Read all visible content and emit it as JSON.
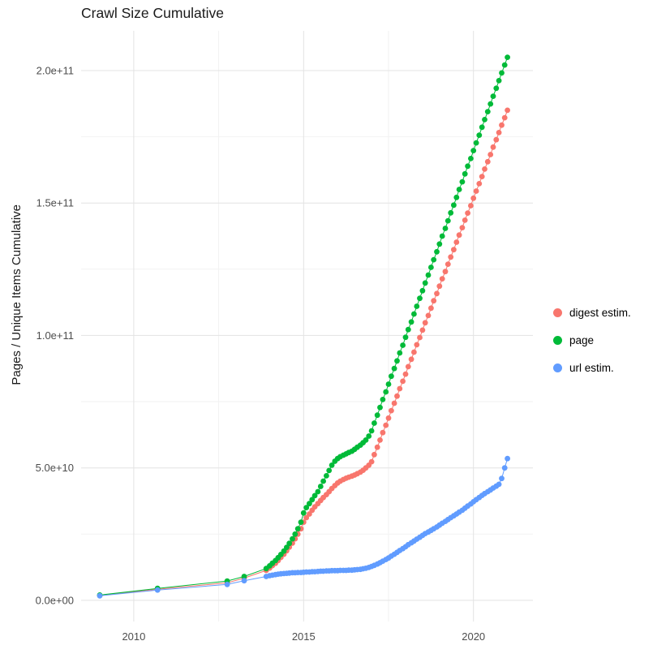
{
  "title": "Crawl Size Cumulative",
  "colors": {
    "background": "#ffffff",
    "grid_major": "#e3e3e3",
    "grid_minor": "#f2f2f2",
    "tick_text": "#4d4d4d",
    "title_text": "#1a1a1a"
  },
  "chart_data": {
    "type": "scatter",
    "title": "Crawl Size Cumulative",
    "xlabel": "",
    "ylabel": "Pages / Unique Items Cumulative",
    "legend_position": "right",
    "grid": true,
    "y_scale_factor": 1000000000,
    "x_domain": [
      2008.45,
      2021.75
    ],
    "y_domain_e9": [
      -8,
      215
    ],
    "x_axis": {
      "ticks": [
        2010,
        2015,
        2020
      ],
      "tick_labels": [
        "2010",
        "2015",
        "2020"
      ],
      "minor_ticks": [
        2012.5,
        2017.5
      ]
    },
    "y_axis": {
      "ticks_e9": [
        0,
        50,
        100,
        150,
        200
      ],
      "tick_labels": [
        "0.0e+00",
        "5.0e+10",
        "1.0e+11",
        "1.5e+11",
        "2.0e+11"
      ],
      "minor_ticks_e9": [
        25,
        75,
        125,
        175
      ]
    },
    "series": [
      {
        "name": "digest estim.",
        "color": "#F8766D",
        "points_e9": [
          [
            2009.0,
            1.8
          ],
          [
            2010.7,
            4.2
          ],
          [
            2012.75,
            6.6
          ],
          [
            2013.25,
            8.4
          ],
          [
            2013.9,
            11.3
          ],
          [
            2014.0,
            12.2
          ],
          [
            2014.08,
            13.1
          ],
          [
            2014.17,
            14.0
          ],
          [
            2014.25,
            15.0
          ],
          [
            2014.33,
            16.2
          ],
          [
            2014.42,
            17.4
          ],
          [
            2014.5,
            18.7
          ],
          [
            2014.58,
            20.1
          ],
          [
            2014.67,
            21.6
          ],
          [
            2014.75,
            23.2
          ],
          [
            2014.83,
            25.0
          ],
          [
            2014.92,
            27.0
          ],
          [
            2015.0,
            29.5
          ],
          [
            2015.08,
            31.2
          ],
          [
            2015.17,
            32.6
          ],
          [
            2015.25,
            34.0
          ],
          [
            2015.33,
            35.3
          ],
          [
            2015.42,
            36.5
          ],
          [
            2015.5,
            37.7
          ],
          [
            2015.58,
            38.8
          ],
          [
            2015.67,
            39.9
          ],
          [
            2015.75,
            41.0
          ],
          [
            2015.83,
            42.2
          ],
          [
            2015.92,
            43.3
          ],
          [
            2016.0,
            44.3
          ],
          [
            2016.08,
            45.0
          ],
          [
            2016.17,
            45.6
          ],
          [
            2016.25,
            46.1
          ],
          [
            2016.33,
            46.5
          ],
          [
            2016.42,
            46.9
          ],
          [
            2016.5,
            47.3
          ],
          [
            2016.58,
            47.8
          ],
          [
            2016.67,
            48.4
          ],
          [
            2016.75,
            49.1
          ],
          [
            2016.83,
            50.0
          ],
          [
            2016.92,
            51.0
          ],
          [
            2017.0,
            52.3
          ],
          [
            2017.08,
            55.0
          ],
          [
            2017.17,
            57.8
          ],
          [
            2017.25,
            60.5
          ],
          [
            2017.33,
            63.3
          ],
          [
            2017.42,
            66.1
          ],
          [
            2017.5,
            68.8
          ],
          [
            2017.58,
            71.6
          ],
          [
            2017.67,
            74.4
          ],
          [
            2017.75,
            77.1
          ],
          [
            2017.83,
            79.9
          ],
          [
            2017.92,
            82.7
          ],
          [
            2018.0,
            85.4
          ],
          [
            2018.08,
            88.2
          ],
          [
            2018.17,
            91.0
          ],
          [
            2018.25,
            93.7
          ],
          [
            2018.33,
            96.5
          ],
          [
            2018.42,
            99.2
          ],
          [
            2018.5,
            102.0
          ],
          [
            2018.58,
            104.8
          ],
          [
            2018.67,
            107.5
          ],
          [
            2018.75,
            110.3
          ],
          [
            2018.83,
            113.1
          ],
          [
            2018.92,
            115.8
          ],
          [
            2019.0,
            118.6
          ],
          [
            2019.08,
            121.4
          ],
          [
            2019.17,
            124.1
          ],
          [
            2019.25,
            126.9
          ],
          [
            2019.33,
            129.6
          ],
          [
            2019.42,
            132.4
          ],
          [
            2019.5,
            135.2
          ],
          [
            2019.58,
            137.9
          ],
          [
            2019.67,
            140.7
          ],
          [
            2019.75,
            143.5
          ],
          [
            2019.83,
            146.2
          ],
          [
            2019.92,
            149.0
          ],
          [
            2020.0,
            151.8
          ],
          [
            2020.08,
            154.5
          ],
          [
            2020.17,
            157.3
          ],
          [
            2020.25,
            160.0
          ],
          [
            2020.33,
            162.8
          ],
          [
            2020.42,
            165.6
          ],
          [
            2020.5,
            168.3
          ],
          [
            2020.58,
            171.1
          ],
          [
            2020.67,
            173.9
          ],
          [
            2020.75,
            176.6
          ],
          [
            2020.83,
            179.4
          ],
          [
            2020.92,
            182.2
          ],
          [
            2021.0,
            185.0
          ]
        ]
      },
      {
        "name": "page",
        "color": "#00BA38",
        "points_e9": [
          [
            2009.0,
            2.0
          ],
          [
            2010.7,
            4.5
          ],
          [
            2012.75,
            7.3
          ],
          [
            2013.25,
            9.0
          ],
          [
            2013.9,
            12.0
          ],
          [
            2014.0,
            13.0
          ],
          [
            2014.08,
            14.0
          ],
          [
            2014.17,
            15.0
          ],
          [
            2014.25,
            16.1
          ],
          [
            2014.33,
            17.3
          ],
          [
            2014.42,
            18.6
          ],
          [
            2014.5,
            20.0
          ],
          [
            2014.58,
            21.5
          ],
          [
            2014.67,
            23.2
          ],
          [
            2014.75,
            25.0
          ],
          [
            2014.83,
            27.0
          ],
          [
            2014.92,
            29.5
          ],
          [
            2015.0,
            33.0
          ],
          [
            2015.08,
            35.0
          ],
          [
            2015.17,
            36.5
          ],
          [
            2015.25,
            38.0
          ],
          [
            2015.33,
            39.5
          ],
          [
            2015.42,
            41.0
          ],
          [
            2015.5,
            43.0
          ],
          [
            2015.58,
            45.0
          ],
          [
            2015.67,
            47.0
          ],
          [
            2015.75,
            49.0
          ],
          [
            2015.83,
            51.0
          ],
          [
            2015.92,
            52.5
          ],
          [
            2016.0,
            53.5
          ],
          [
            2016.08,
            54.2
          ],
          [
            2016.17,
            54.8
          ],
          [
            2016.25,
            55.3
          ],
          [
            2016.33,
            55.8
          ],
          [
            2016.42,
            56.3
          ],
          [
            2016.5,
            57.0
          ],
          [
            2016.58,
            57.8
          ],
          [
            2016.67,
            58.6
          ],
          [
            2016.75,
            59.5
          ],
          [
            2016.83,
            60.5
          ],
          [
            2016.92,
            62.0
          ],
          [
            2017.0,
            64.0
          ],
          [
            2017.08,
            66.9
          ],
          [
            2017.17,
            69.9
          ],
          [
            2017.25,
            72.8
          ],
          [
            2017.33,
            75.8
          ],
          [
            2017.42,
            78.7
          ],
          [
            2017.5,
            81.6
          ],
          [
            2017.58,
            84.6
          ],
          [
            2017.67,
            87.5
          ],
          [
            2017.75,
            90.4
          ],
          [
            2017.83,
            93.4
          ],
          [
            2017.92,
            96.3
          ],
          [
            2018.0,
            99.3
          ],
          [
            2018.08,
            102.2
          ],
          [
            2018.17,
            105.1
          ],
          [
            2018.25,
            108.1
          ],
          [
            2018.33,
            111.0
          ],
          [
            2018.42,
            114.0
          ],
          [
            2018.5,
            116.9
          ],
          [
            2018.58,
            119.8
          ],
          [
            2018.67,
            122.8
          ],
          [
            2018.75,
            125.7
          ],
          [
            2018.83,
            128.6
          ],
          [
            2018.92,
            131.6
          ],
          [
            2019.0,
            134.5
          ],
          [
            2019.08,
            137.5
          ],
          [
            2019.17,
            140.4
          ],
          [
            2019.25,
            143.3
          ],
          [
            2019.33,
            146.3
          ],
          [
            2019.42,
            149.2
          ],
          [
            2019.5,
            152.1
          ],
          [
            2019.58,
            155.1
          ],
          [
            2019.67,
            158.0
          ],
          [
            2019.75,
            161.0
          ],
          [
            2019.83,
            163.9
          ],
          [
            2019.92,
            166.8
          ],
          [
            2020.0,
            169.8
          ],
          [
            2020.08,
            172.7
          ],
          [
            2020.17,
            175.6
          ],
          [
            2020.25,
            178.6
          ],
          [
            2020.33,
            181.5
          ],
          [
            2020.42,
            184.5
          ],
          [
            2020.5,
            187.4
          ],
          [
            2020.58,
            190.3
          ],
          [
            2020.67,
            193.3
          ],
          [
            2020.75,
            196.2
          ],
          [
            2020.83,
            199.1
          ],
          [
            2020.92,
            202.1
          ],
          [
            2021.0,
            205.0
          ]
        ]
      },
      {
        "name": "url estim.",
        "color": "#619CFF",
        "points_e9": [
          [
            2009.0,
            1.7
          ],
          [
            2010.7,
            3.9
          ],
          [
            2012.75,
            6.0
          ],
          [
            2013.25,
            7.4
          ],
          [
            2013.9,
            9.0
          ],
          [
            2014.0,
            9.3
          ],
          [
            2014.08,
            9.5
          ],
          [
            2014.17,
            9.7
          ],
          [
            2014.25,
            9.9
          ],
          [
            2014.33,
            10.0
          ],
          [
            2014.42,
            10.1
          ],
          [
            2014.5,
            10.2
          ],
          [
            2014.58,
            10.3
          ],
          [
            2014.67,
            10.4
          ],
          [
            2014.75,
            10.4
          ],
          [
            2014.83,
            10.5
          ],
          [
            2014.92,
            10.5
          ],
          [
            2015.0,
            10.6
          ],
          [
            2015.08,
            10.7
          ],
          [
            2015.17,
            10.7
          ],
          [
            2015.25,
            10.8
          ],
          [
            2015.33,
            10.8
          ],
          [
            2015.42,
            10.9
          ],
          [
            2015.5,
            11.0
          ],
          [
            2015.58,
            11.0
          ],
          [
            2015.67,
            11.1
          ],
          [
            2015.75,
            11.1
          ],
          [
            2015.83,
            11.2
          ],
          [
            2015.92,
            11.2
          ],
          [
            2016.0,
            11.2
          ],
          [
            2016.08,
            11.3
          ],
          [
            2016.17,
            11.3
          ],
          [
            2016.25,
            11.3
          ],
          [
            2016.33,
            11.4
          ],
          [
            2016.42,
            11.4
          ],
          [
            2016.5,
            11.5
          ],
          [
            2016.58,
            11.6
          ],
          [
            2016.67,
            11.7
          ],
          [
            2016.75,
            11.9
          ],
          [
            2016.83,
            12.1
          ],
          [
            2016.92,
            12.4
          ],
          [
            2017.0,
            12.8
          ],
          [
            2017.08,
            13.2
          ],
          [
            2017.17,
            13.7
          ],
          [
            2017.25,
            14.2
          ],
          [
            2017.33,
            14.8
          ],
          [
            2017.42,
            15.4
          ],
          [
            2017.5,
            16.0
          ],
          [
            2017.58,
            16.7
          ],
          [
            2017.67,
            17.4
          ],
          [
            2017.75,
            18.1
          ],
          [
            2017.83,
            18.8
          ],
          [
            2017.92,
            19.5
          ],
          [
            2018.0,
            20.2
          ],
          [
            2018.08,
            21.0
          ],
          [
            2018.17,
            21.7
          ],
          [
            2018.25,
            22.4
          ],
          [
            2018.33,
            23.1
          ],
          [
            2018.42,
            23.8
          ],
          [
            2018.5,
            24.5
          ],
          [
            2018.58,
            25.2
          ],
          [
            2018.67,
            25.8
          ],
          [
            2018.75,
            26.4
          ],
          [
            2018.83,
            27.0
          ],
          [
            2018.92,
            27.7
          ],
          [
            2019.0,
            28.4
          ],
          [
            2019.08,
            29.1
          ],
          [
            2019.17,
            29.8
          ],
          [
            2019.25,
            30.5
          ],
          [
            2019.33,
            31.2
          ],
          [
            2019.42,
            31.9
          ],
          [
            2019.5,
            32.6
          ],
          [
            2019.58,
            33.3
          ],
          [
            2019.67,
            34.0
          ],
          [
            2019.75,
            34.8
          ],
          [
            2019.83,
            35.6
          ],
          [
            2019.92,
            36.4
          ],
          [
            2020.0,
            37.2
          ],
          [
            2020.08,
            38.0
          ],
          [
            2020.17,
            38.8
          ],
          [
            2020.25,
            39.6
          ],
          [
            2020.33,
            40.3
          ],
          [
            2020.42,
            41.0
          ],
          [
            2020.5,
            41.7
          ],
          [
            2020.58,
            42.4
          ],
          [
            2020.67,
            43.1
          ],
          [
            2020.75,
            43.8
          ],
          [
            2020.83,
            46.0
          ],
          [
            2020.92,
            50.0
          ],
          [
            2021.0,
            53.5
          ]
        ]
      }
    ]
  }
}
